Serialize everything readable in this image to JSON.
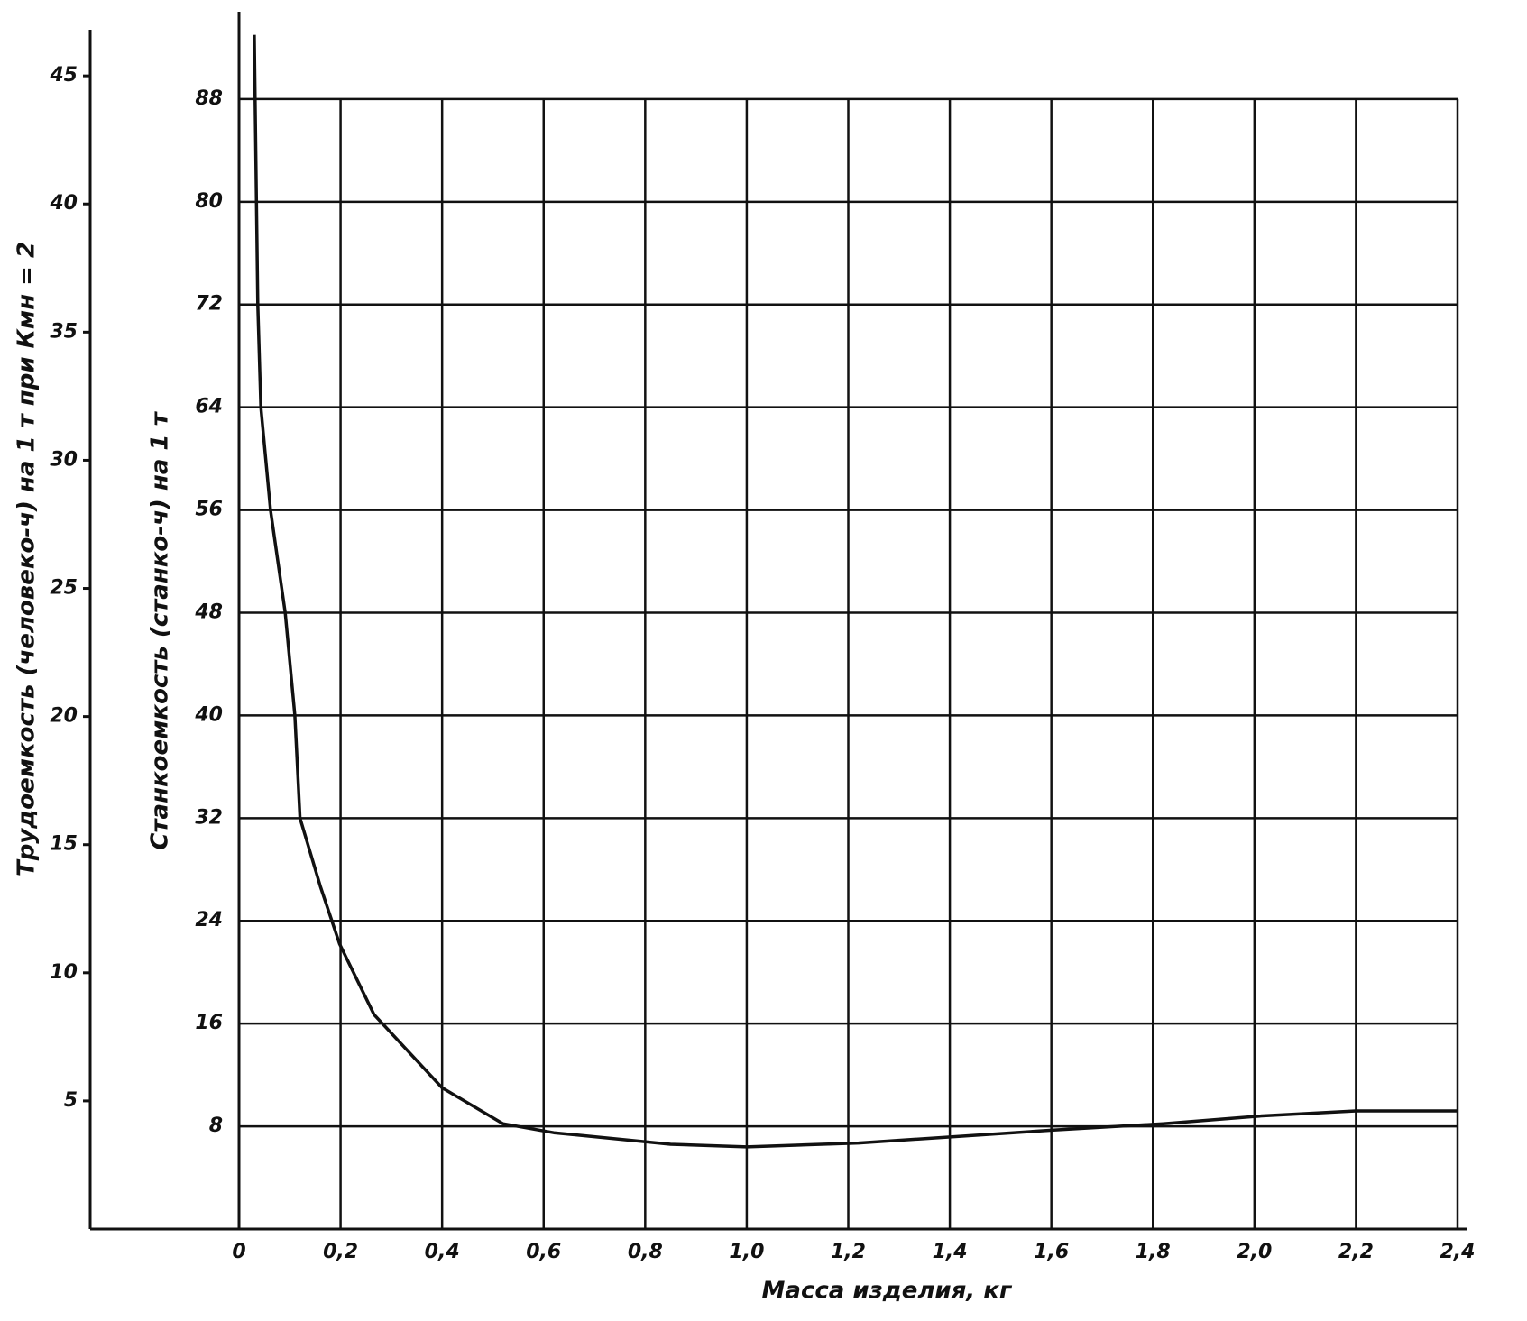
{
  "chart_data": {
    "type": "line",
    "xlabel": "Масса изделия, кг",
    "ylabel": "Станкоемкость (станко-ч) на 1 т",
    "y2label": "Трудоемкость (человеко-ч) на 1 т при Кмн = 2",
    "x": [
      0.03,
      0.037,
      0.043,
      0.062,
      0.091,
      0.11,
      0.12,
      0.16,
      0.198,
      0.266,
      0.4,
      0.52,
      0.62,
      0.85,
      1.0,
      1.22,
      1.6,
      1.82,
      2.01,
      2.2,
      2.4
    ],
    "values": [
      93,
      72,
      64,
      56,
      48,
      40,
      32,
      26.7,
      22.2,
      16.7,
      11,
      8.2,
      7.5,
      6.6,
      6.4,
      6.7,
      7.7,
      8.2,
      8.8,
      9.2,
      9.2
    ],
    "color": "#111111",
    "xlim": [
      0,
      2.4
    ],
    "xticks": [
      0,
      {
        "value": 0.2,
        "label": "0,2"
      },
      {
        "value": 0.4,
        "label": "0,4"
      },
      {
        "value": 0.6,
        "label": "0,6"
      },
      {
        "value": 0.8,
        "label": "0,8"
      },
      {
        "value": 1.0,
        "label": "1,0"
      },
      {
        "value": 1.2,
        "label": "1,2"
      },
      {
        "value": 1.4,
        "label": "1,4"
      },
      {
        "value": 1.6,
        "label": "1,6"
      },
      {
        "value": 1.8,
        "label": "1,8"
      },
      {
        "value": 2.0,
        "label": "2,0"
      },
      {
        "value": 2.2,
        "label": "2,2"
      },
      {
        "value": 2.4,
        "label": "2,4"
      }
    ],
    "ylim": [
      0,
      93.4
    ],
    "yticks": [
      8,
      16,
      24,
      32,
      40,
      48,
      56,
      64,
      72,
      80,
      88
    ],
    "y2lim": [
      0,
      46.8
    ],
    "y2ticks": [
      5,
      10,
      15,
      20,
      25,
      30,
      35,
      40,
      45
    ],
    "grid": true
  }
}
